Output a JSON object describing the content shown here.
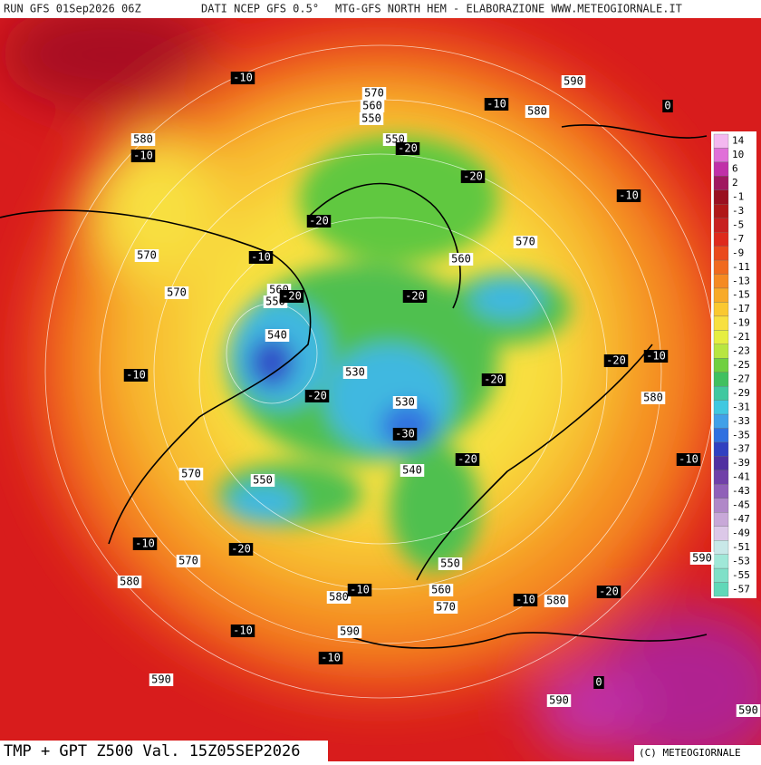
{
  "header": {
    "run": "RUN GFS 01Sep2026 06Z",
    "source": "DATI NCEP GFS 0.5°",
    "site": "MTG-GFS NORTH HEM - ELABORAZIONE WWW.METEOGIORNALE.IT"
  },
  "footer": {
    "title": "TMP + GPT Z500 Val. 15Z05SEP2026",
    "copyright": "(C) METEOGIORNALE"
  },
  "legend": {
    "labels": [
      14,
      10,
      6,
      2,
      -1,
      -3,
      -5,
      -7,
      -9,
      -11,
      -13,
      -15,
      -17,
      -19,
      -21,
      -23,
      -25,
      -27,
      -29,
      -31,
      -33,
      -35,
      -37,
      -39,
      -41,
      -43,
      -45,
      -47,
      -49,
      -51,
      -53,
      -55,
      -57
    ],
    "colors": [
      "#f4b8f0",
      "#e070d8",
      "#c030a8",
      "#a01860",
      "#9a1020",
      "#b01818",
      "#c82020",
      "#de2a1c",
      "#ea4a1c",
      "#f06a1e",
      "#f58a22",
      "#f8aa28",
      "#fac830",
      "#f8e040",
      "#e6ee40",
      "#b8e640",
      "#70d040",
      "#40c060",
      "#40c8a0",
      "#40c8e0",
      "#40a0e8",
      "#3070e0",
      "#3040c0",
      "#5030a0",
      "#7040a8",
      "#9060b8",
      "#b088c8",
      "#c8a8d8",
      "#dcc8e8",
      "#c8e8e8",
      "#a0e8d8",
      "#80e0c8",
      "#60d8b8"
    ]
  },
  "contour_labels": [
    590,
    570,
    560,
    550,
    580,
    580,
    550,
    570,
    570,
    560,
    570,
    560,
    550,
    540,
    530,
    530,
    540,
    580,
    570,
    550,
    570,
    580,
    550,
    580,
    560,
    570,
    580,
    590,
    590,
    590,
    590,
    590
  ],
  "temperature_labels": [
    -10,
    -10,
    0,
    -10,
    -20,
    -20,
    -10,
    -20,
    -10,
    -20,
    -20,
    -20,
    -10,
    -10,
    -20,
    -20,
    -30,
    -20,
    -10,
    -10,
    -20,
    -10,
    -10,
    -20,
    -10,
    -10,
    0
  ]
}
